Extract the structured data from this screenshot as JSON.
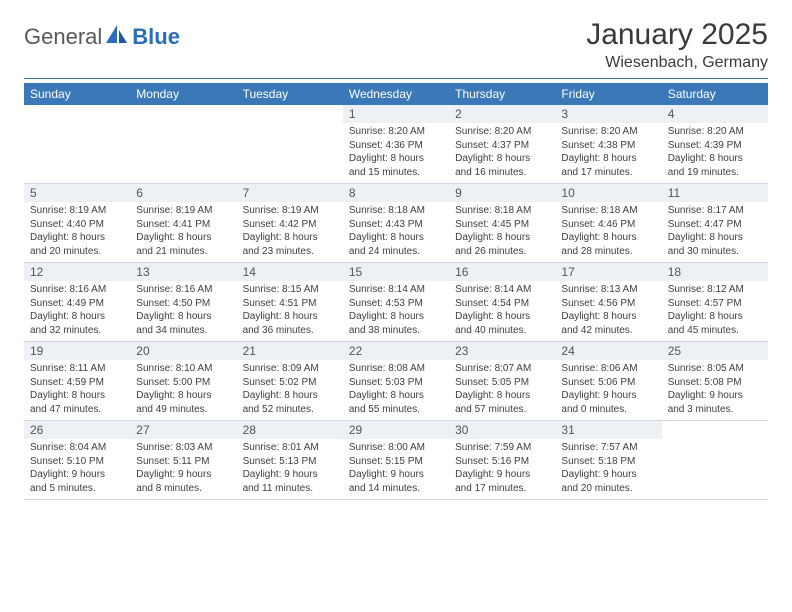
{
  "logo": {
    "general": "General",
    "blue": "Blue"
  },
  "title": "January 2025",
  "location": "Wiesenbach, Germany",
  "colors": {
    "header_bg": "#3a78b8",
    "header_text": "#ffffff",
    "daynum_bg": "#edf0f4",
    "divider": "#3a78b8",
    "body_text": "#404040",
    "logo_grey": "#58595b",
    "logo_blue": "#2a6ebb"
  },
  "day_names": [
    "Sunday",
    "Monday",
    "Tuesday",
    "Wednesday",
    "Thursday",
    "Friday",
    "Saturday"
  ],
  "weeks": [
    [
      null,
      null,
      null,
      {
        "n": "1",
        "l1": "Sunrise: 8:20 AM",
        "l2": "Sunset: 4:36 PM",
        "l3": "Daylight: 8 hours",
        "l4": "and 15 minutes."
      },
      {
        "n": "2",
        "l1": "Sunrise: 8:20 AM",
        "l2": "Sunset: 4:37 PM",
        "l3": "Daylight: 8 hours",
        "l4": "and 16 minutes."
      },
      {
        "n": "3",
        "l1": "Sunrise: 8:20 AM",
        "l2": "Sunset: 4:38 PM",
        "l3": "Daylight: 8 hours",
        "l4": "and 17 minutes."
      },
      {
        "n": "4",
        "l1": "Sunrise: 8:20 AM",
        "l2": "Sunset: 4:39 PM",
        "l3": "Daylight: 8 hours",
        "l4": "and 19 minutes."
      }
    ],
    [
      {
        "n": "5",
        "l1": "Sunrise: 8:19 AM",
        "l2": "Sunset: 4:40 PM",
        "l3": "Daylight: 8 hours",
        "l4": "and 20 minutes."
      },
      {
        "n": "6",
        "l1": "Sunrise: 8:19 AM",
        "l2": "Sunset: 4:41 PM",
        "l3": "Daylight: 8 hours",
        "l4": "and 21 minutes."
      },
      {
        "n": "7",
        "l1": "Sunrise: 8:19 AM",
        "l2": "Sunset: 4:42 PM",
        "l3": "Daylight: 8 hours",
        "l4": "and 23 minutes."
      },
      {
        "n": "8",
        "l1": "Sunrise: 8:18 AM",
        "l2": "Sunset: 4:43 PM",
        "l3": "Daylight: 8 hours",
        "l4": "and 24 minutes."
      },
      {
        "n": "9",
        "l1": "Sunrise: 8:18 AM",
        "l2": "Sunset: 4:45 PM",
        "l3": "Daylight: 8 hours",
        "l4": "and 26 minutes."
      },
      {
        "n": "10",
        "l1": "Sunrise: 8:18 AM",
        "l2": "Sunset: 4:46 PM",
        "l3": "Daylight: 8 hours",
        "l4": "and 28 minutes."
      },
      {
        "n": "11",
        "l1": "Sunrise: 8:17 AM",
        "l2": "Sunset: 4:47 PM",
        "l3": "Daylight: 8 hours",
        "l4": "and 30 minutes."
      }
    ],
    [
      {
        "n": "12",
        "l1": "Sunrise: 8:16 AM",
        "l2": "Sunset: 4:49 PM",
        "l3": "Daylight: 8 hours",
        "l4": "and 32 minutes."
      },
      {
        "n": "13",
        "l1": "Sunrise: 8:16 AM",
        "l2": "Sunset: 4:50 PM",
        "l3": "Daylight: 8 hours",
        "l4": "and 34 minutes."
      },
      {
        "n": "14",
        "l1": "Sunrise: 8:15 AM",
        "l2": "Sunset: 4:51 PM",
        "l3": "Daylight: 8 hours",
        "l4": "and 36 minutes."
      },
      {
        "n": "15",
        "l1": "Sunrise: 8:14 AM",
        "l2": "Sunset: 4:53 PM",
        "l3": "Daylight: 8 hours",
        "l4": "and 38 minutes."
      },
      {
        "n": "16",
        "l1": "Sunrise: 8:14 AM",
        "l2": "Sunset: 4:54 PM",
        "l3": "Daylight: 8 hours",
        "l4": "and 40 minutes."
      },
      {
        "n": "17",
        "l1": "Sunrise: 8:13 AM",
        "l2": "Sunset: 4:56 PM",
        "l3": "Daylight: 8 hours",
        "l4": "and 42 minutes."
      },
      {
        "n": "18",
        "l1": "Sunrise: 8:12 AM",
        "l2": "Sunset: 4:57 PM",
        "l3": "Daylight: 8 hours",
        "l4": "and 45 minutes."
      }
    ],
    [
      {
        "n": "19",
        "l1": "Sunrise: 8:11 AM",
        "l2": "Sunset: 4:59 PM",
        "l3": "Daylight: 8 hours",
        "l4": "and 47 minutes."
      },
      {
        "n": "20",
        "l1": "Sunrise: 8:10 AM",
        "l2": "Sunset: 5:00 PM",
        "l3": "Daylight: 8 hours",
        "l4": "and 49 minutes."
      },
      {
        "n": "21",
        "l1": "Sunrise: 8:09 AM",
        "l2": "Sunset: 5:02 PM",
        "l3": "Daylight: 8 hours",
        "l4": "and 52 minutes."
      },
      {
        "n": "22",
        "l1": "Sunrise: 8:08 AM",
        "l2": "Sunset: 5:03 PM",
        "l3": "Daylight: 8 hours",
        "l4": "and 55 minutes."
      },
      {
        "n": "23",
        "l1": "Sunrise: 8:07 AM",
        "l2": "Sunset: 5:05 PM",
        "l3": "Daylight: 8 hours",
        "l4": "and 57 minutes."
      },
      {
        "n": "24",
        "l1": "Sunrise: 8:06 AM",
        "l2": "Sunset: 5:06 PM",
        "l3": "Daylight: 9 hours",
        "l4": "and 0 minutes."
      },
      {
        "n": "25",
        "l1": "Sunrise: 8:05 AM",
        "l2": "Sunset: 5:08 PM",
        "l3": "Daylight: 9 hours",
        "l4": "and 3 minutes."
      }
    ],
    [
      {
        "n": "26",
        "l1": "Sunrise: 8:04 AM",
        "l2": "Sunset: 5:10 PM",
        "l3": "Daylight: 9 hours",
        "l4": "and 5 minutes."
      },
      {
        "n": "27",
        "l1": "Sunrise: 8:03 AM",
        "l2": "Sunset: 5:11 PM",
        "l3": "Daylight: 9 hours",
        "l4": "and 8 minutes."
      },
      {
        "n": "28",
        "l1": "Sunrise: 8:01 AM",
        "l2": "Sunset: 5:13 PM",
        "l3": "Daylight: 9 hours",
        "l4": "and 11 minutes."
      },
      {
        "n": "29",
        "l1": "Sunrise: 8:00 AM",
        "l2": "Sunset: 5:15 PM",
        "l3": "Daylight: 9 hours",
        "l4": "and 14 minutes."
      },
      {
        "n": "30",
        "l1": "Sunrise: 7:59 AM",
        "l2": "Sunset: 5:16 PM",
        "l3": "Daylight: 9 hours",
        "l4": "and 17 minutes."
      },
      {
        "n": "31",
        "l1": "Sunrise: 7:57 AM",
        "l2": "Sunset: 5:18 PM",
        "l3": "Daylight: 9 hours",
        "l4": "and 20 minutes."
      },
      null
    ]
  ]
}
